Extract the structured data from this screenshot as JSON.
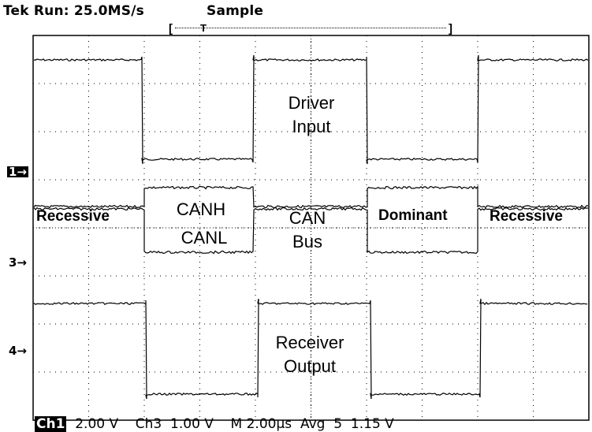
{
  "header": {
    "brand_run": "Tek Run: 25.0MS/s",
    "acq_mode": "Sample"
  },
  "trigger_bar": {
    "marker": "T"
  },
  "channel_markers": {
    "ch1": "1→",
    "ch3": "3→",
    "ch4": "4→"
  },
  "labels": {
    "driver_input": [
      "Driver",
      "Input"
    ],
    "canh": "CANH",
    "canl": "CANL",
    "can_bus": [
      "CAN",
      "Bus"
    ],
    "receiver_output": [
      "Receiver",
      "Output"
    ],
    "recessive_left": "Recessive",
    "dominant": "Dominant",
    "recessive_right": "Recessive"
  },
  "footer": {
    "ch1_box": "Ch1",
    "ch1_scale": "2.00 V",
    "ch3": "Ch3",
    "ch3_scale": "1.00 V",
    "timebase": "M 2.00µs",
    "avg": "Avg",
    "avg_n": "5",
    "level": "1.15 V"
  },
  "colors": {
    "trace": "#000000",
    "grid": "#000000",
    "background": "#ffffff"
  }
}
